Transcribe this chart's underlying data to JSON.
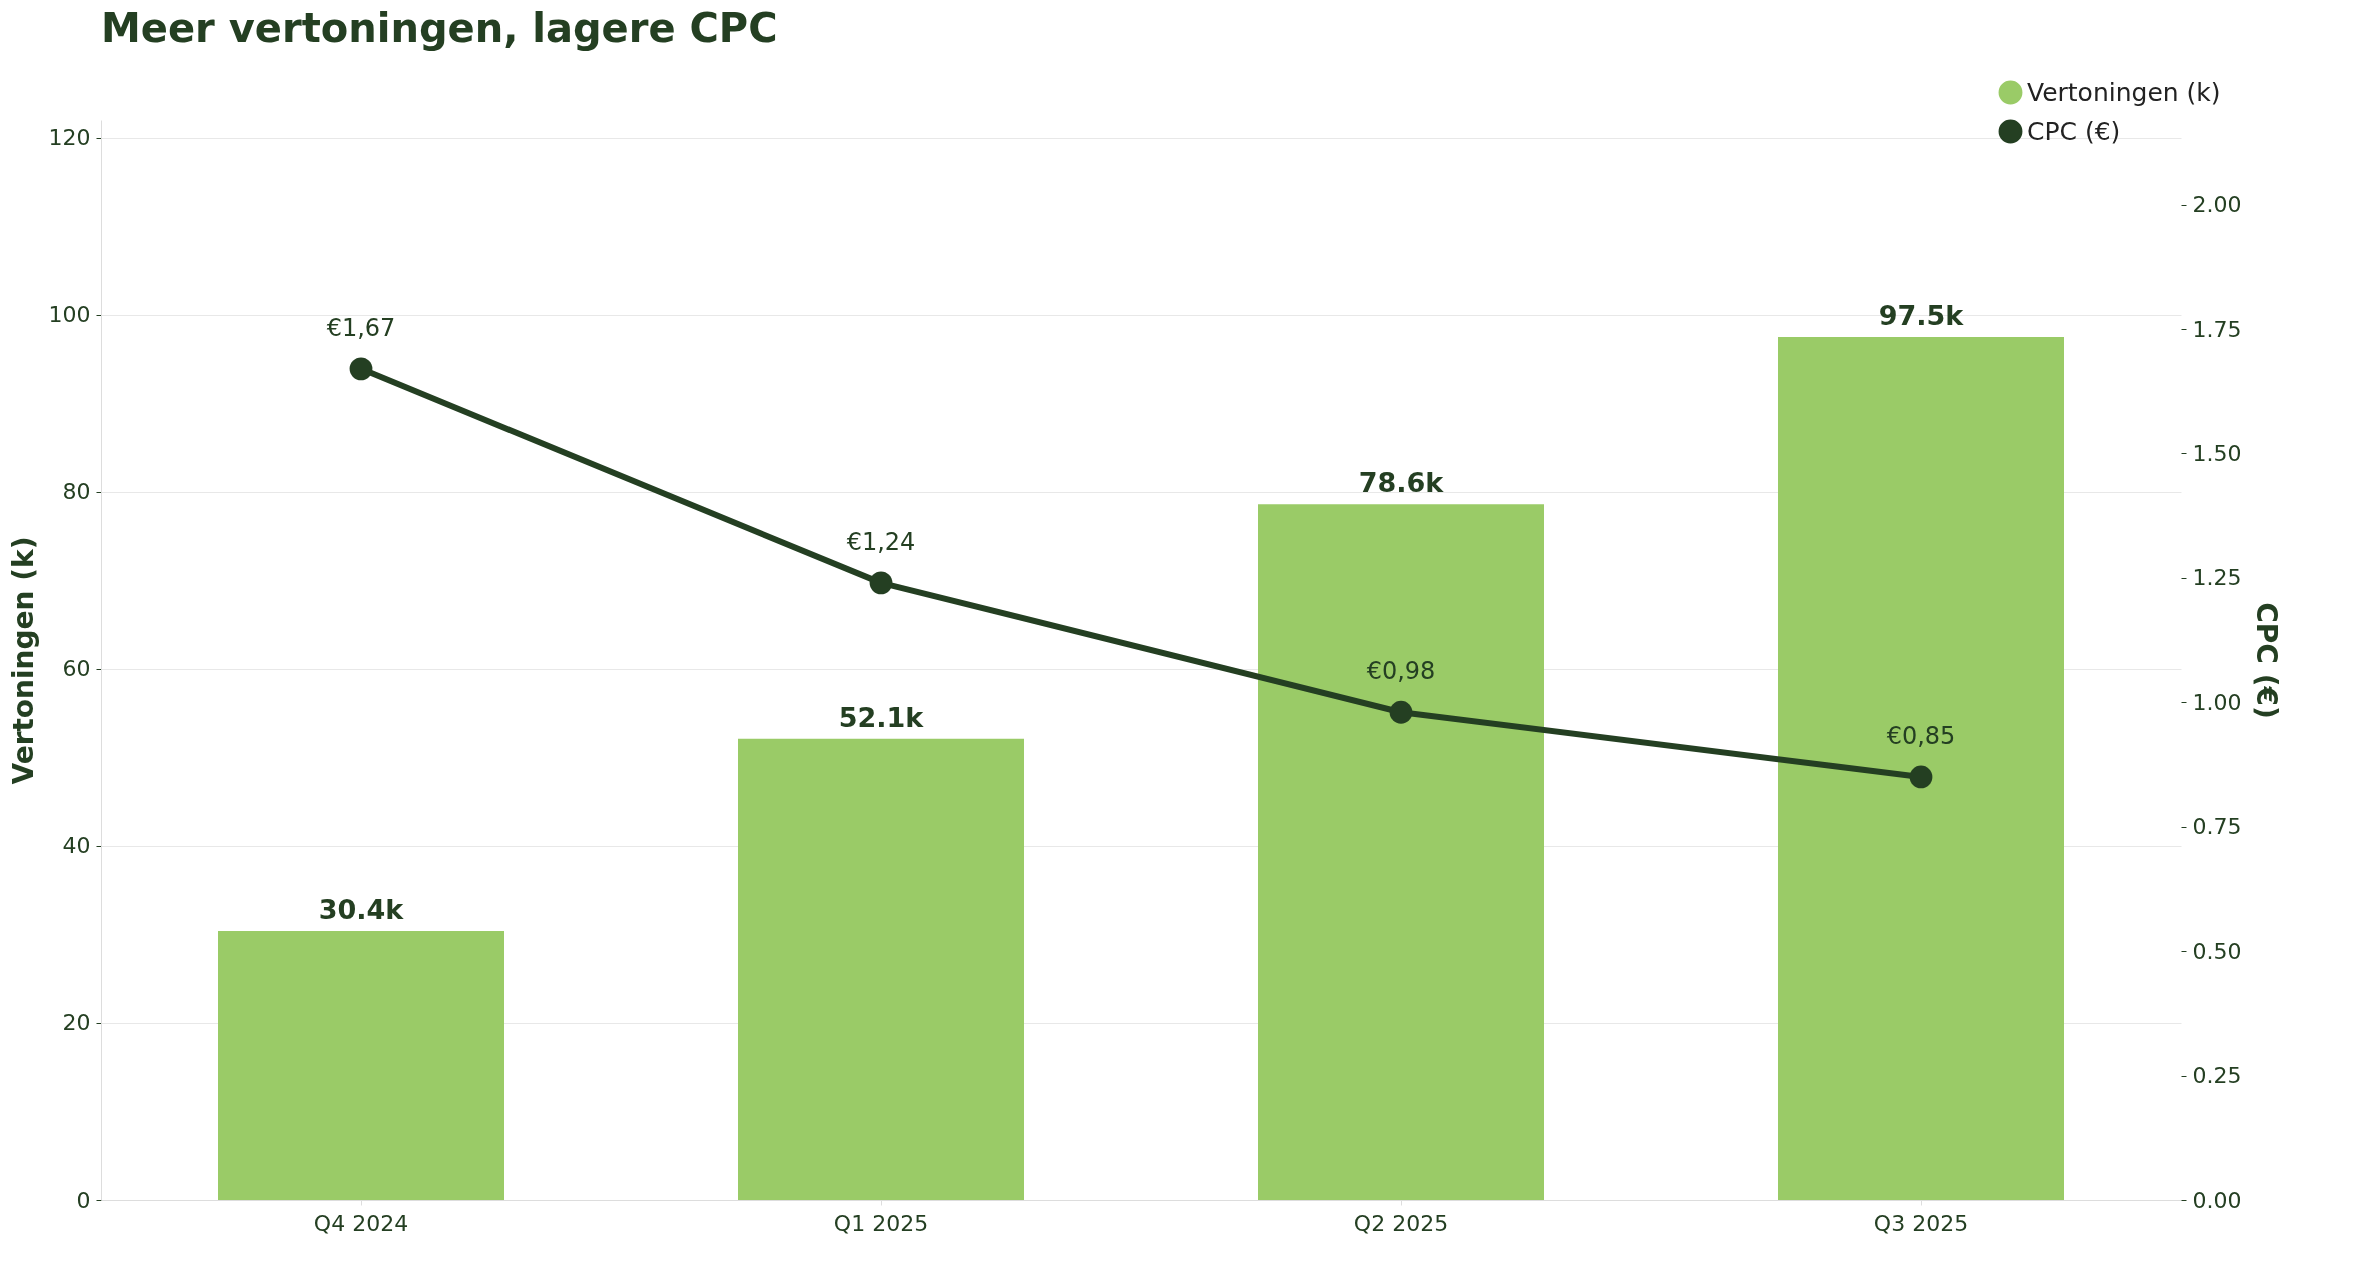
{
  "chart_data": {
    "type": "bar",
    "title": "Meer vertoningen, lagere CPC",
    "categories": [
      "Q4 2024",
      "Q1 2025",
      "Q2 2025",
      "Q3 2025"
    ],
    "series": [
      {
        "name": "Vertoningen (k)",
        "color": "#9acb67",
        "values": [
          30.4,
          52.1,
          78.6,
          97.5
        ],
        "value_labels": [
          "30.4k",
          "52.1k",
          "78.6k",
          "97.5k"
        ]
      },
      {
        "name": "CPC (€)",
        "type": "line",
        "axis": "y2",
        "color": "#243f22",
        "values": [
          1.67,
          1.24,
          0.98,
          0.85
        ],
        "value_labels": [
          "€1,67",
          "€1,24",
          "€0,98",
          "€0,85"
        ],
        "marker": "circle",
        "line_style": "solid"
      }
    ],
    "ylabel": "Vertoningen (k)",
    "y2label": "CPC (€)",
    "ylim": [
      0,
      122
    ],
    "yticks": [
      0,
      20,
      40,
      60,
      80,
      100,
      120
    ],
    "y2lim": [
      0,
      2.17
    ],
    "y2ticks": [
      {
        "value": 0,
        "label": "0.00"
      },
      {
        "value": 0.25,
        "label": "0.25"
      },
      {
        "value": 0.5,
        "label": "0.50"
      },
      {
        "value": 0.75,
        "label": "0.75"
      },
      {
        "value": 1,
        "label": "1.00"
      },
      {
        "value": 1.25,
        "label": "1.25"
      },
      {
        "value": 1.5,
        "label": "1.50"
      },
      {
        "value": 1.75,
        "label": "1.75"
      },
      {
        "value": 2,
        "label": "2.00"
      }
    ],
    "grid": "y",
    "legend": "top right"
  }
}
